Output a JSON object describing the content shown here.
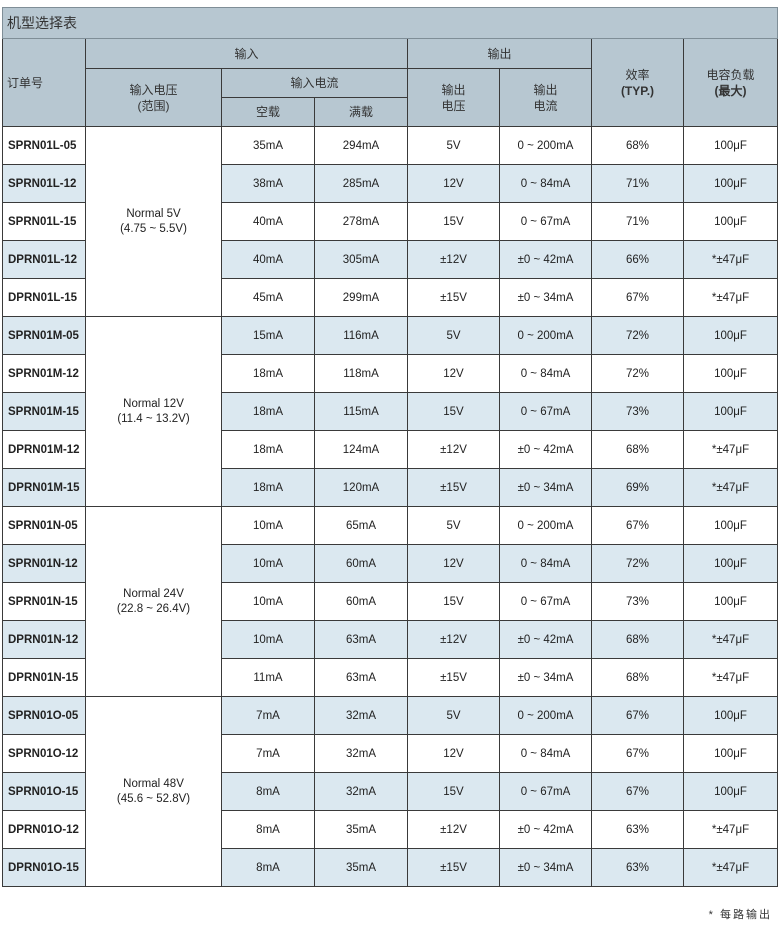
{
  "title": "机型选择表",
  "headers": {
    "order": "订单号",
    "input": "输入",
    "output": "输出",
    "input_voltage": "输入电压",
    "input_voltage_sub": "(范围)",
    "input_current": "输入电流",
    "no_load": "空载",
    "full_load": "满载",
    "output_voltage": "输出",
    "output_voltage_sub": "电压",
    "output_current": "输出",
    "output_current_sub": "电流",
    "efficiency": "效率",
    "efficiency_sub": "(TYP.)",
    "cap_load": "电容负载",
    "cap_load_sub": "(最大)"
  },
  "groups": [
    {
      "vin": "Normal 5V",
      "range": "(4.75 ~ 5.5V)",
      "rows": [
        [
          "SPRN01L-05",
          "35mA",
          "294mA",
          "5V",
          "0 ~ 200mA",
          "68%",
          "100μF"
        ],
        [
          "SPRN01L-12",
          "38mA",
          "285mA",
          "12V",
          "0 ~ 84mA",
          "71%",
          "100μF"
        ],
        [
          "SPRN01L-15",
          "40mA",
          "278mA",
          "15V",
          "0 ~ 67mA",
          "71%",
          "100μF"
        ],
        [
          "DPRN01L-12",
          "40mA",
          "305mA",
          "±12V",
          "±0 ~ 42mA",
          "66%",
          "*±47μF"
        ],
        [
          "DPRN01L-15",
          "45mA",
          "299mA",
          "±15V",
          "±0 ~ 34mA",
          "67%",
          "*±47μF"
        ]
      ]
    },
    {
      "vin": "Normal 12V",
      "range": "(11.4 ~ 13.2V)",
      "rows": [
        [
          "SPRN01M-05",
          "15mA",
          "116mA",
          "5V",
          "0 ~ 200mA",
          "72%",
          "100μF"
        ],
        [
          "SPRN01M-12",
          "18mA",
          "118mA",
          "12V",
          "0 ~ 84mA",
          "72%",
          "100μF"
        ],
        [
          "SPRN01M-15",
          "18mA",
          "115mA",
          "15V",
          "0 ~ 67mA",
          "73%",
          "100μF"
        ],
        [
          "DPRN01M-12",
          "18mA",
          "124mA",
          "±12V",
          "±0 ~ 42mA",
          "68%",
          "*±47μF"
        ],
        [
          "DPRN01M-15",
          "18mA",
          "120mA",
          "±15V",
          "±0 ~ 34mA",
          "69%",
          "*±47μF"
        ]
      ]
    },
    {
      "vin": "Normal 24V",
      "range": "(22.8 ~ 26.4V)",
      "rows": [
        [
          "SPRN01N-05",
          "10mA",
          "65mA",
          "5V",
          "0 ~ 200mA",
          "67%",
          "100μF"
        ],
        [
          "SPRN01N-12",
          "10mA",
          "60mA",
          "12V",
          "0 ~ 84mA",
          "72%",
          "100μF"
        ],
        [
          "SPRN01N-15",
          "10mA",
          "60mA",
          "15V",
          "0 ~ 67mA",
          "73%",
          "100μF"
        ],
        [
          "DPRN01N-12",
          "10mA",
          "63mA",
          "±12V",
          "±0 ~ 42mA",
          "68%",
          "*±47μF"
        ],
        [
          "DPRN01N-15",
          "11mA",
          "63mA",
          "±15V",
          "±0 ~ 34mA",
          "68%",
          "*±47μF"
        ]
      ]
    },
    {
      "vin": "Normal 48V",
      "range": "(45.6 ~ 52.8V)",
      "rows": [
        [
          "SPRN01O-05",
          "7mA",
          "32mA",
          "5V",
          "0 ~ 200mA",
          "67%",
          "100μF"
        ],
        [
          "SPRN01O-12",
          "7mA",
          "32mA",
          "12V",
          "0 ~ 84mA",
          "67%",
          "100μF"
        ],
        [
          "SPRN01O-15",
          "8mA",
          "32mA",
          "15V",
          "0 ~ 67mA",
          "67%",
          "100μF"
        ],
        [
          "DPRN01O-12",
          "8mA",
          "35mA",
          "±12V",
          "±0 ~ 42mA",
          "63%",
          "*±47μF"
        ],
        [
          "DPRN01O-15",
          "8mA",
          "35mA",
          "±15V",
          "±0 ~ 34mA",
          "63%",
          "*±47μF"
        ]
      ]
    }
  ],
  "footnote": "* 每路输出",
  "colors": {
    "header_bg": "#b7c7d1",
    "alt_row_bg": "#dbe8f0"
  }
}
